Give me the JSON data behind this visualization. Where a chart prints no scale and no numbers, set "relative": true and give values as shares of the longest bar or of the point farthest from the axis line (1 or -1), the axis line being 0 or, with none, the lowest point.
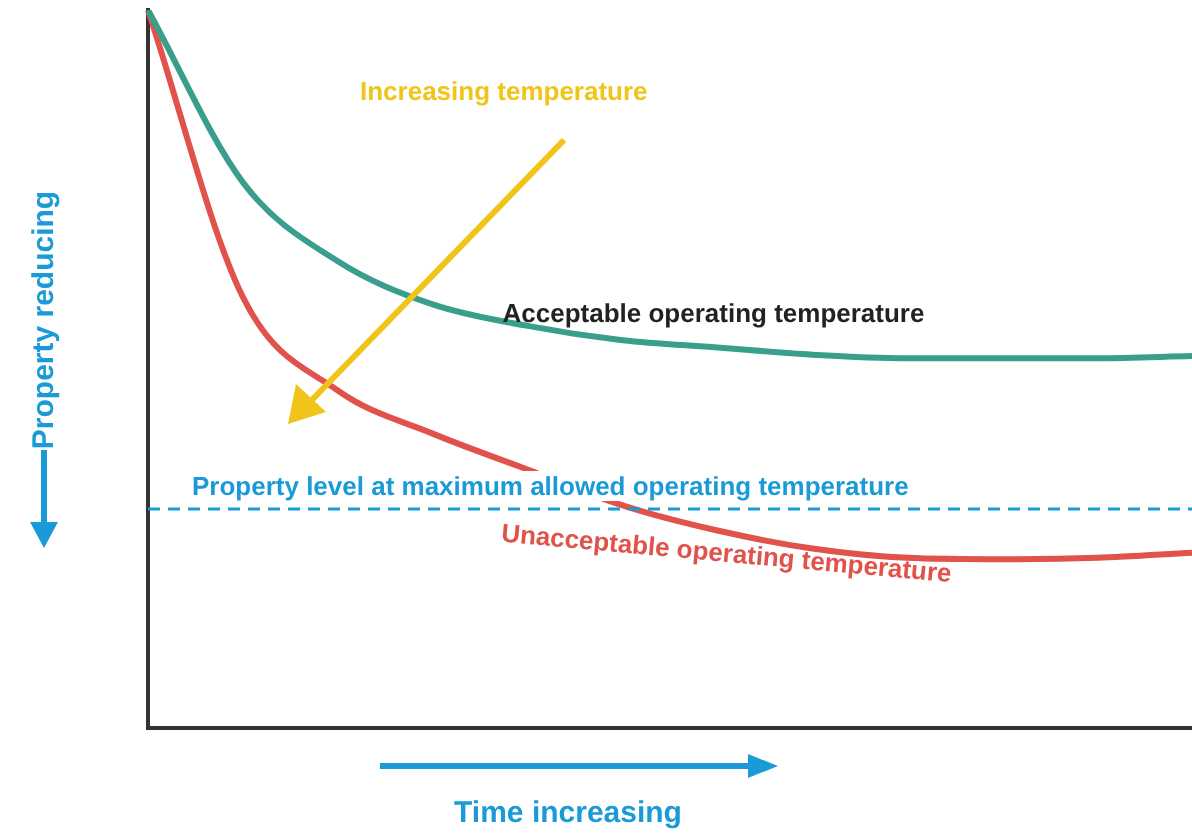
{
  "chart_data": {
    "type": "line",
    "relative": true,
    "xlabel": "Time increasing",
    "ylabel": "Property reducing",
    "categories": [
      null,
      null,
      null,
      null,
      null,
      null,
      null,
      null,
      null,
      null,
      null,
      null
    ],
    "series": [
      {
        "name": "Acceptable operating temperature",
        "color": "#3a9e8c",
        "values": [
          1,
          0.76,
          0.65,
          0.59,
          0.56,
          0.54,
          0.53,
          0.52,
          0.515,
          0.515,
          0.515,
          0.518
        ]
      },
      {
        "name": "Unacceptable operating temperature",
        "color": "#e0524a",
        "values": [
          1,
          0.6,
          0.47,
          0.41,
          0.36,
          0.31,
          0.275,
          0.25,
          0.237,
          0.235,
          0.237,
          0.244
        ]
      }
    ],
    "ref_lines": [
      {
        "axis": "y",
        "value": 0.305,
        "label": "Property level at maximum allowed operating temperature",
        "color": "#1a9ad6",
        "line_style": "dashed"
      }
    ],
    "annotations": [
      "Increasing temperature"
    ],
    "grid": false,
    "legend": false,
    "marker": "none",
    "line_style": "solid"
  }
}
